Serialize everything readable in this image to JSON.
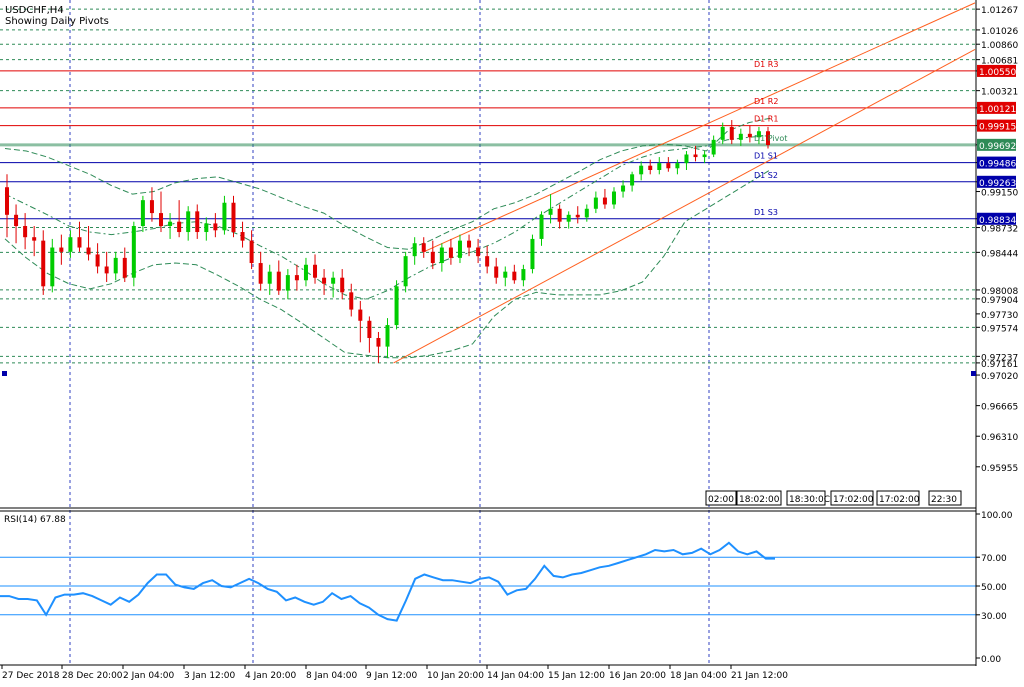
{
  "window": {
    "symbol_title": "USDCHF,H4",
    "subtitle": "Showing Daily Pivots"
  },
  "colors": {
    "bull": "#00cc00",
    "bear": "#e00000",
    "pivot_red": "#e00000",
    "pivot_blue": "#0000aa",
    "pivot_green": "#2e8b57",
    "channel": "#ff6020",
    "bands": "#2e8b57",
    "grid": "#2e8b57",
    "rsi": "#1e90ff",
    "rsi_levels": "#1e90ff"
  },
  "chart_data": [
    {
      "type": "candlestick",
      "title": "USDCHF,H4",
      "subtitle": "Showing Daily Pivots",
      "ylim": [
        0.955,
        1.0135
      ],
      "price_labels": [
        "1.01267",
        "1.01026",
        "1.00860",
        "1.00681",
        "1.00550",
        "1.00321",
        "1.00121",
        "0.99915",
        "0.99692",
        "0.99486",
        "0.99263",
        "0.99150",
        "0.98834",
        "0.98732",
        "0.98444",
        "0.98008",
        "0.97904",
        "0.97730",
        "0.97574",
        "0.97237",
        "0.97161",
        "0.97020",
        "0.96665",
        "0.96310",
        "0.95955"
      ],
      "highlighted_labels": [
        {
          "label": "1.00550",
          "color": "#e00000"
        },
        {
          "label": "1.00121",
          "color": "#e00000"
        },
        {
          "label": "0.99915",
          "color": "#e00000"
        },
        {
          "label": "0.99692",
          "color": "#2e8b57"
        },
        {
          "label": "0.99486",
          "color": "#0000aa"
        },
        {
          "label": "0.99263",
          "color": "#0000aa"
        },
        {
          "label": "0.98834",
          "color": "#0000aa"
        }
      ],
      "pivots": [
        {
          "name": "D1 R3",
          "value": 1.0055,
          "color": "#e00000"
        },
        {
          "name": "D1 R2",
          "value": 1.00121,
          "color": "#e00000"
        },
        {
          "name": "D1 R1",
          "value": 0.99915,
          "color": "#e00000"
        },
        {
          "name": "D1 Pivot",
          "value": 0.99692,
          "color": "#2e8b57"
        },
        {
          "name": "D1 S1",
          "value": 0.99486,
          "color": "#0000aa"
        },
        {
          "name": "D1 S2",
          "value": 0.99263,
          "color": "#0000aa"
        },
        {
          "name": "D1 S3",
          "value": 0.98834,
          "color": "#0000aa"
        }
      ],
      "dotted_levels": [
        1.01267,
        1.01026,
        1.0086,
        1.00681,
        1.00321,
        0.98732,
        0.98444,
        0.98008,
        0.97904,
        0.97574,
        0.97237,
        0.97161
      ],
      "x_labels": [
        "27 Dec 2018",
        "28 Dec 20:00",
        "2 Jan 04:00",
        "3 Jan 12:00",
        "4 Jan 20:00",
        "8 Jan 04:00",
        "9 Jan 12:00",
        "10 Jan 20:00",
        "14 Jan 04:00",
        "15 Jan 12:00",
        "16 Jan 20:00",
        "18 Jan 04:00",
        "21 Jan 12:00"
      ],
      "time_boxes": [
        "02:00",
        "18:02:00",
        "18:30:0C",
        "17:02:00",
        "17:02:00",
        "22:30"
      ],
      "candles": [
        {
          "o": 0.992,
          "h": 0.9935,
          "l": 0.9862,
          "c": 0.9888
        },
        {
          "o": 0.9888,
          "h": 0.99,
          "l": 0.9855,
          "c": 0.9875
        },
        {
          "o": 0.9875,
          "h": 0.989,
          "l": 0.9848,
          "c": 0.9862
        },
        {
          "o": 0.9862,
          "h": 0.9875,
          "l": 0.984,
          "c": 0.9858
        },
        {
          "o": 0.9858,
          "h": 0.987,
          "l": 0.9795,
          "c": 0.9805
        },
        {
          "o": 0.9805,
          "h": 0.986,
          "l": 0.9798,
          "c": 0.985
        },
        {
          "o": 0.985,
          "h": 0.9865,
          "l": 0.983,
          "c": 0.9845
        },
        {
          "o": 0.9845,
          "h": 0.987,
          "l": 0.9838,
          "c": 0.9862
        },
        {
          "o": 0.9862,
          "h": 0.988,
          "l": 0.9845,
          "c": 0.985
        },
        {
          "o": 0.985,
          "h": 0.9875,
          "l": 0.9835,
          "c": 0.9842
        },
        {
          "o": 0.9842,
          "h": 0.9855,
          "l": 0.982,
          "c": 0.9828
        },
        {
          "o": 0.9828,
          "h": 0.9845,
          "l": 0.981,
          "c": 0.982
        },
        {
          "o": 0.982,
          "h": 0.9845,
          "l": 0.9812,
          "c": 0.9838
        },
        {
          "o": 0.9838,
          "h": 0.985,
          "l": 0.981,
          "c": 0.9815
        },
        {
          "o": 0.9815,
          "h": 0.988,
          "l": 0.9805,
          "c": 0.9875
        },
        {
          "o": 0.9875,
          "h": 0.991,
          "l": 0.9868,
          "c": 0.9905
        },
        {
          "o": 0.9905,
          "h": 0.992,
          "l": 0.988,
          "c": 0.989
        },
        {
          "o": 0.989,
          "h": 0.9915,
          "l": 0.9868,
          "c": 0.9875
        },
        {
          "o": 0.9875,
          "h": 0.989,
          "l": 0.986,
          "c": 0.988
        },
        {
          "o": 0.988,
          "h": 0.9905,
          "l": 0.9862,
          "c": 0.9868
        },
        {
          "o": 0.9868,
          "h": 0.9898,
          "l": 0.9858,
          "c": 0.9892
        },
        {
          "o": 0.9892,
          "h": 0.99,
          "l": 0.986,
          "c": 0.9868
        },
        {
          "o": 0.9868,
          "h": 0.9885,
          "l": 0.9858,
          "c": 0.9878
        },
        {
          "o": 0.9878,
          "h": 0.989,
          "l": 0.9862,
          "c": 0.987
        },
        {
          "o": 0.987,
          "h": 0.991,
          "l": 0.9865,
          "c": 0.9902
        },
        {
          "o": 0.9902,
          "h": 0.991,
          "l": 0.9862,
          "c": 0.9868
        },
        {
          "o": 0.9868,
          "h": 0.988,
          "l": 0.985,
          "c": 0.9858
        },
        {
          "o": 0.9858,
          "h": 0.987,
          "l": 0.9825,
          "c": 0.9832
        },
        {
          "o": 0.9832,
          "h": 0.9845,
          "l": 0.98,
          "c": 0.9808
        },
        {
          "o": 0.9808,
          "h": 0.983,
          "l": 0.9795,
          "c": 0.9822
        },
        {
          "o": 0.9822,
          "h": 0.9835,
          "l": 0.9795,
          "c": 0.98
        },
        {
          "o": 0.98,
          "h": 0.9825,
          "l": 0.979,
          "c": 0.9818
        },
        {
          "o": 0.9818,
          "h": 0.983,
          "l": 0.98,
          "c": 0.9812
        },
        {
          "o": 0.9812,
          "h": 0.9838,
          "l": 0.9805,
          "c": 0.983
        },
        {
          "o": 0.983,
          "h": 0.9842,
          "l": 0.9808,
          "c": 0.9815
        },
        {
          "o": 0.9815,
          "h": 0.9825,
          "l": 0.9795,
          "c": 0.9808
        },
        {
          "o": 0.9808,
          "h": 0.9822,
          "l": 0.9792,
          "c": 0.9815
        },
        {
          "o": 0.9815,
          "h": 0.9825,
          "l": 0.979,
          "c": 0.9798
        },
        {
          "o": 0.9798,
          "h": 0.9808,
          "l": 0.977,
          "c": 0.9778
        },
        {
          "o": 0.9778,
          "h": 0.9788,
          "l": 0.974,
          "c": 0.9765
        },
        {
          "o": 0.9765,
          "h": 0.977,
          "l": 0.9728,
          "c": 0.9745
        },
        {
          "o": 0.9745,
          "h": 0.9752,
          "l": 0.9716,
          "c": 0.9735
        },
        {
          "o": 0.9735,
          "h": 0.9768,
          "l": 0.9722,
          "c": 0.976
        },
        {
          "o": 0.976,
          "h": 0.9812,
          "l": 0.9755,
          "c": 0.9805
        },
        {
          "o": 0.9805,
          "h": 0.9845,
          "l": 0.9798,
          "c": 0.984
        },
        {
          "o": 0.984,
          "h": 0.9862,
          "l": 0.983,
          "c": 0.9855
        },
        {
          "o": 0.9855,
          "h": 0.9862,
          "l": 0.9838,
          "c": 0.9845
        },
        {
          "o": 0.9845,
          "h": 0.9858,
          "l": 0.9825,
          "c": 0.9832
        },
        {
          "o": 0.9832,
          "h": 0.9855,
          "l": 0.9822,
          "c": 0.985
        },
        {
          "o": 0.985,
          "h": 0.986,
          "l": 0.983,
          "c": 0.9838
        },
        {
          "o": 0.9838,
          "h": 0.9865,
          "l": 0.9832,
          "c": 0.9858
        },
        {
          "o": 0.9858,
          "h": 0.9865,
          "l": 0.984,
          "c": 0.985
        },
        {
          "o": 0.985,
          "h": 0.986,
          "l": 0.9832,
          "c": 0.984
        },
        {
          "o": 0.984,
          "h": 0.9852,
          "l": 0.982,
          "c": 0.9828
        },
        {
          "o": 0.9828,
          "h": 0.9838,
          "l": 0.9808,
          "c": 0.9815
        },
        {
          "o": 0.9815,
          "h": 0.9828,
          "l": 0.9805,
          "c": 0.9822
        },
        {
          "o": 0.9822,
          "h": 0.983,
          "l": 0.9808,
          "c": 0.9812
        },
        {
          "o": 0.9812,
          "h": 0.983,
          "l": 0.9805,
          "c": 0.9825
        },
        {
          "o": 0.9825,
          "h": 0.9865,
          "l": 0.982,
          "c": 0.986
        },
        {
          "o": 0.986,
          "h": 0.9892,
          "l": 0.9852,
          "c": 0.9888
        },
        {
          "o": 0.9888,
          "h": 0.9912,
          "l": 0.9878,
          "c": 0.9895
        },
        {
          "o": 0.9895,
          "h": 0.99,
          "l": 0.9872,
          "c": 0.988
        },
        {
          "o": 0.988,
          "h": 0.9892,
          "l": 0.9872,
          "c": 0.9888
        },
        {
          "o": 0.9888,
          "h": 0.9898,
          "l": 0.9878,
          "c": 0.9885
        },
        {
          "o": 0.9885,
          "h": 0.99,
          "l": 0.988,
          "c": 0.9895
        },
        {
          "o": 0.9895,
          "h": 0.9915,
          "l": 0.989,
          "c": 0.9908
        },
        {
          "o": 0.9908,
          "h": 0.9918,
          "l": 0.9895,
          "c": 0.99
        },
        {
          "o": 0.99,
          "h": 0.992,
          "l": 0.9895,
          "c": 0.9915
        },
        {
          "o": 0.9915,
          "h": 0.9928,
          "l": 0.9908,
          "c": 0.9922
        },
        {
          "o": 0.9922,
          "h": 0.9938,
          "l": 0.9915,
          "c": 0.9935
        },
        {
          "o": 0.9935,
          "h": 0.995,
          "l": 0.9928,
          "c": 0.9945
        },
        {
          "o": 0.9945,
          "h": 0.9952,
          "l": 0.9935,
          "c": 0.994
        },
        {
          "o": 0.994,
          "h": 0.9955,
          "l": 0.9935,
          "c": 0.9948
        },
        {
          "o": 0.9948,
          "h": 0.9955,
          "l": 0.9938,
          "c": 0.9942
        },
        {
          "o": 0.9942,
          "h": 0.9952,
          "l": 0.9935,
          "c": 0.9948
        },
        {
          "o": 0.9948,
          "h": 0.9962,
          "l": 0.994,
          "c": 0.9958
        },
        {
          "o": 0.9958,
          "h": 0.9968,
          "l": 0.995,
          "c": 0.9955
        },
        {
          "o": 0.9955,
          "h": 0.9962,
          "l": 0.9948,
          "c": 0.9958
        },
        {
          "o": 0.9958,
          "h": 0.998,
          "l": 0.9955,
          "c": 0.9975
        },
        {
          "o": 0.9975,
          "h": 0.9995,
          "l": 0.997,
          "c": 0.999
        },
        {
          "o": 0.999,
          "h": 0.9998,
          "l": 0.997,
          "c": 0.9975
        },
        {
          "o": 0.9975,
          "h": 0.9988,
          "l": 0.9968,
          "c": 0.9982
        },
        {
          "o": 0.9982,
          "h": 0.9992,
          "l": 0.9972,
          "c": 0.9978
        },
        {
          "o": 0.9978,
          "h": 0.999,
          "l": 0.997,
          "c": 0.9985
        },
        {
          "o": 0.9985,
          "h": 0.999,
          "l": 0.9965,
          "c": 0.9969
        }
      ],
      "channel_lines": [
        {
          "x1": 46,
          "y1": 0.9845,
          "x2": 100,
          "y2": 1.0134
        },
        {
          "x1": 43,
          "y1": 0.9716,
          "x2": 100,
          "y2": 1.008
        }
      ],
      "bands": {
        "upper": [
          0.9965,
          0.9962,
          0.9955,
          0.9945,
          0.9935,
          0.9922,
          0.9912,
          0.9915,
          0.9925,
          0.993,
          0.9932,
          0.9925,
          0.9918,
          0.9908,
          0.9898,
          0.989,
          0.9875,
          0.9862,
          0.985,
          0.9848,
          0.9858,
          0.987,
          0.988,
          0.9895,
          0.9902,
          0.9912,
          0.9925,
          0.9938,
          0.9952,
          0.9962,
          0.9968,
          0.997,
          0.9968,
          0.9962,
          0.9985,
          0.9995,
          1.0
        ],
        "middle": [
          0.9912,
          0.99,
          0.9888,
          0.9875,
          0.9868,
          0.9865,
          0.9868,
          0.9872,
          0.9878,
          0.988,
          0.9875,
          0.9865,
          0.9852,
          0.984,
          0.9825,
          0.9808,
          0.9795,
          0.979,
          0.98,
          0.9815,
          0.9828,
          0.9838,
          0.9845,
          0.9855,
          0.9868,
          0.9885,
          0.99,
          0.9915,
          0.993,
          0.9945,
          0.9955,
          0.9962,
          0.9965,
          0.9968,
          0.9975,
          0.9978,
          0.998
        ],
        "lower": [
          0.986,
          0.9838,
          0.982,
          0.9808,
          0.9802,
          0.9808,
          0.982,
          0.983,
          0.9832,
          0.983,
          0.9818,
          0.9805,
          0.979,
          0.9778,
          0.9762,
          0.9745,
          0.9728,
          0.9725,
          0.9722,
          0.9722,
          0.9725,
          0.973,
          0.9738,
          0.977,
          0.979,
          0.9798,
          0.9795,
          0.9795,
          0.9795,
          0.98,
          0.981,
          0.984,
          0.988,
          0.9895,
          0.991,
          0.9925,
          0.994
        ]
      }
    },
    {
      "type": "line",
      "title": "RSI(14) 67.88",
      "ylim": [
        0,
        100
      ],
      "y_ticks": [
        "100.00",
        "70.00",
        "50.00",
        "30.00",
        "0.00"
      ],
      "levels": [
        70,
        50,
        30
      ],
      "series": [
        {
          "values": [
            43,
            43,
            41,
            41,
            40,
            30,
            42,
            44,
            44,
            45,
            43,
            40,
            37,
            42,
            39,
            44,
            52,
            58,
            58,
            51,
            49,
            48,
            52,
            54,
            50,
            49,
            52,
            55,
            52,
            48,
            46,
            40,
            42,
            39,
            37,
            39,
            45,
            41,
            43,
            38,
            35,
            30,
            27,
            26,
            40,
            55,
            58,
            56,
            54,
            54,
            53,
            52,
            55,
            56,
            53,
            44,
            47,
            48,
            55,
            64,
            57,
            56,
            58,
            59,
            61,
            63,
            64,
            66,
            68,
            70,
            72,
            75,
            74,
            75,
            72,
            73,
            76,
            72,
            75,
            80,
            74,
            72,
            74,
            69,
            69
          ]
        }
      ]
    }
  ]
}
